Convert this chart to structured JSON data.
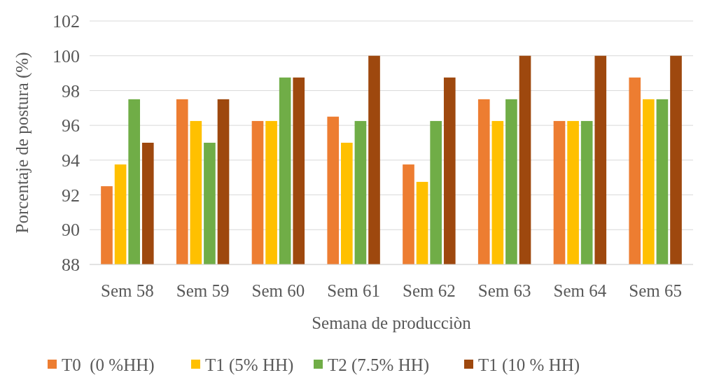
{
  "chart_data": {
    "type": "bar",
    "xlabel": "Semana de producciòn",
    "ylabel": "Porcentaje de postura (%)",
    "categories": [
      "Sem 58",
      "Sem 59",
      "Sem 60",
      "Sem 61",
      "Sem 62",
      "Sem 63",
      "Sem 64",
      "Sem 65"
    ],
    "series": [
      {
        "name": "T0  (0 %HH)",
        "color": "#ed7d31",
        "values": [
          92.5,
          97.5,
          96.25,
          96.5,
          93.75,
          97.5,
          96.25,
          98.75
        ]
      },
      {
        "name": "T1 (5% HH)",
        "color": "#ffc000",
        "values": [
          93.75,
          96.25,
          96.25,
          95,
          92.75,
          96.25,
          96.25,
          97.5
        ]
      },
      {
        "name": "T2 (7.5% HH)",
        "color": "#70ad47",
        "values": [
          97.5,
          95,
          98.75,
          96.25,
          96.25,
          97.5,
          96.25,
          97.5
        ]
      },
      {
        "name": "T1 (10 % HH)",
        "color": "#9e480e",
        "values": [
          95,
          97.5,
          98.75,
          100,
          98.75,
          100,
          100,
          100
        ]
      }
    ],
    "ylim": [
      88,
      102
    ],
    "yticks": [
      88,
      90,
      92,
      94,
      96,
      98,
      100,
      102
    ],
    "grid": "y",
    "legend": "bottom"
  }
}
